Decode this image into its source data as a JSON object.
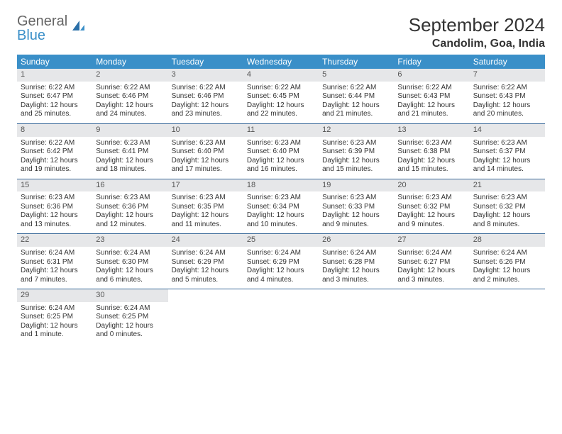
{
  "logo": {
    "word1": "General",
    "word2": "Blue"
  },
  "title": "September 2024",
  "location": "Candolim, Goa, India",
  "header_bg": "#3a8fc8",
  "header_fg": "#ffffff",
  "daynum_bg": "#e6e7e9",
  "row_border": "#3a6a9a",
  "weekdays": [
    "Sunday",
    "Monday",
    "Tuesday",
    "Wednesday",
    "Thursday",
    "Friday",
    "Saturday"
  ],
  "weeks": [
    [
      {
        "n": "1",
        "sr": "Sunrise: 6:22 AM",
        "ss": "Sunset: 6:47 PM",
        "dl": "Daylight: 12 hours and 25 minutes."
      },
      {
        "n": "2",
        "sr": "Sunrise: 6:22 AM",
        "ss": "Sunset: 6:46 PM",
        "dl": "Daylight: 12 hours and 24 minutes."
      },
      {
        "n": "3",
        "sr": "Sunrise: 6:22 AM",
        "ss": "Sunset: 6:46 PM",
        "dl": "Daylight: 12 hours and 23 minutes."
      },
      {
        "n": "4",
        "sr": "Sunrise: 6:22 AM",
        "ss": "Sunset: 6:45 PM",
        "dl": "Daylight: 12 hours and 22 minutes."
      },
      {
        "n": "5",
        "sr": "Sunrise: 6:22 AM",
        "ss": "Sunset: 6:44 PM",
        "dl": "Daylight: 12 hours and 21 minutes."
      },
      {
        "n": "6",
        "sr": "Sunrise: 6:22 AM",
        "ss": "Sunset: 6:43 PM",
        "dl": "Daylight: 12 hours and 21 minutes."
      },
      {
        "n": "7",
        "sr": "Sunrise: 6:22 AM",
        "ss": "Sunset: 6:43 PM",
        "dl": "Daylight: 12 hours and 20 minutes."
      }
    ],
    [
      {
        "n": "8",
        "sr": "Sunrise: 6:22 AM",
        "ss": "Sunset: 6:42 PM",
        "dl": "Daylight: 12 hours and 19 minutes."
      },
      {
        "n": "9",
        "sr": "Sunrise: 6:23 AM",
        "ss": "Sunset: 6:41 PM",
        "dl": "Daylight: 12 hours and 18 minutes."
      },
      {
        "n": "10",
        "sr": "Sunrise: 6:23 AM",
        "ss": "Sunset: 6:40 PM",
        "dl": "Daylight: 12 hours and 17 minutes."
      },
      {
        "n": "11",
        "sr": "Sunrise: 6:23 AM",
        "ss": "Sunset: 6:40 PM",
        "dl": "Daylight: 12 hours and 16 minutes."
      },
      {
        "n": "12",
        "sr": "Sunrise: 6:23 AM",
        "ss": "Sunset: 6:39 PM",
        "dl": "Daylight: 12 hours and 15 minutes."
      },
      {
        "n": "13",
        "sr": "Sunrise: 6:23 AM",
        "ss": "Sunset: 6:38 PM",
        "dl": "Daylight: 12 hours and 15 minutes."
      },
      {
        "n": "14",
        "sr": "Sunrise: 6:23 AM",
        "ss": "Sunset: 6:37 PM",
        "dl": "Daylight: 12 hours and 14 minutes."
      }
    ],
    [
      {
        "n": "15",
        "sr": "Sunrise: 6:23 AM",
        "ss": "Sunset: 6:36 PM",
        "dl": "Daylight: 12 hours and 13 minutes."
      },
      {
        "n": "16",
        "sr": "Sunrise: 6:23 AM",
        "ss": "Sunset: 6:36 PM",
        "dl": "Daylight: 12 hours and 12 minutes."
      },
      {
        "n": "17",
        "sr": "Sunrise: 6:23 AM",
        "ss": "Sunset: 6:35 PM",
        "dl": "Daylight: 12 hours and 11 minutes."
      },
      {
        "n": "18",
        "sr": "Sunrise: 6:23 AM",
        "ss": "Sunset: 6:34 PM",
        "dl": "Daylight: 12 hours and 10 minutes."
      },
      {
        "n": "19",
        "sr": "Sunrise: 6:23 AM",
        "ss": "Sunset: 6:33 PM",
        "dl": "Daylight: 12 hours and 9 minutes."
      },
      {
        "n": "20",
        "sr": "Sunrise: 6:23 AM",
        "ss": "Sunset: 6:32 PM",
        "dl": "Daylight: 12 hours and 9 minutes."
      },
      {
        "n": "21",
        "sr": "Sunrise: 6:23 AM",
        "ss": "Sunset: 6:32 PM",
        "dl": "Daylight: 12 hours and 8 minutes."
      }
    ],
    [
      {
        "n": "22",
        "sr": "Sunrise: 6:24 AM",
        "ss": "Sunset: 6:31 PM",
        "dl": "Daylight: 12 hours and 7 minutes."
      },
      {
        "n": "23",
        "sr": "Sunrise: 6:24 AM",
        "ss": "Sunset: 6:30 PM",
        "dl": "Daylight: 12 hours and 6 minutes."
      },
      {
        "n": "24",
        "sr": "Sunrise: 6:24 AM",
        "ss": "Sunset: 6:29 PM",
        "dl": "Daylight: 12 hours and 5 minutes."
      },
      {
        "n": "25",
        "sr": "Sunrise: 6:24 AM",
        "ss": "Sunset: 6:29 PM",
        "dl": "Daylight: 12 hours and 4 minutes."
      },
      {
        "n": "26",
        "sr": "Sunrise: 6:24 AM",
        "ss": "Sunset: 6:28 PM",
        "dl": "Daylight: 12 hours and 3 minutes."
      },
      {
        "n": "27",
        "sr": "Sunrise: 6:24 AM",
        "ss": "Sunset: 6:27 PM",
        "dl": "Daylight: 12 hours and 3 minutes."
      },
      {
        "n": "28",
        "sr": "Sunrise: 6:24 AM",
        "ss": "Sunset: 6:26 PM",
        "dl": "Daylight: 12 hours and 2 minutes."
      }
    ],
    [
      {
        "n": "29",
        "sr": "Sunrise: 6:24 AM",
        "ss": "Sunset: 6:25 PM",
        "dl": "Daylight: 12 hours and 1 minute."
      },
      {
        "n": "30",
        "sr": "Sunrise: 6:24 AM",
        "ss": "Sunset: 6:25 PM",
        "dl": "Daylight: 12 hours and 0 minutes."
      },
      null,
      null,
      null,
      null,
      null
    ]
  ]
}
